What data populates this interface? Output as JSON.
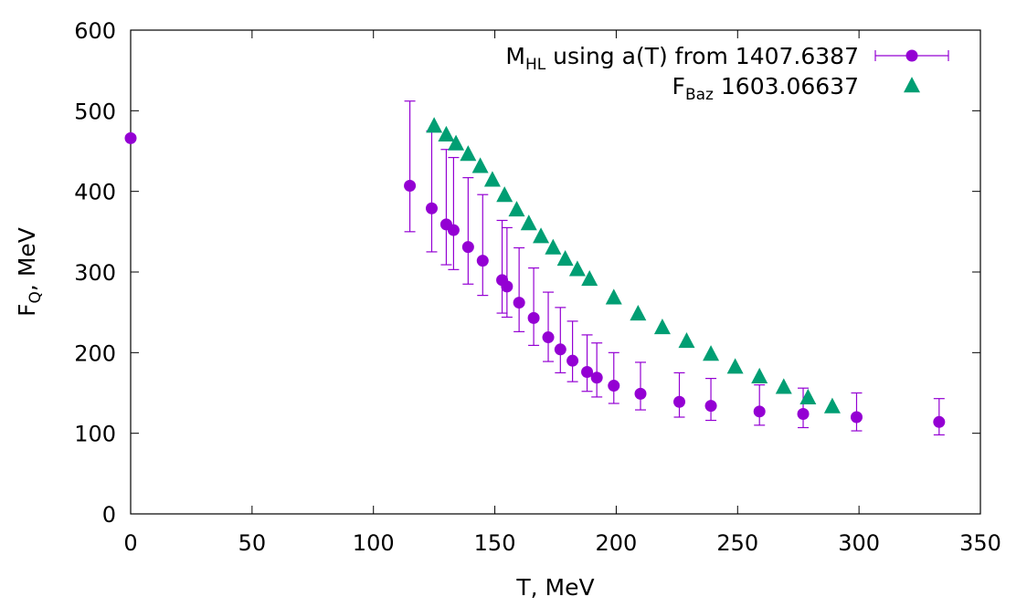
{
  "chart_data": {
    "type": "scatter",
    "title": "",
    "xlabel": "T, MeV",
    "ylabel": {
      "main": "F",
      "sub": "Q",
      "suffix": ", MeV"
    },
    "xlim": [
      0,
      350
    ],
    "ylim": [
      0,
      600
    ],
    "xticks": [
      0,
      50,
      100,
      150,
      200,
      250,
      300,
      350
    ],
    "yticks": [
      0,
      100,
      200,
      300,
      400,
      500,
      600
    ],
    "grid": false,
    "legend_position": "top-right",
    "series": [
      {
        "name": "M_HL using a(T) from 1407.6387",
        "legend": {
          "main": "M",
          "sub": "HL",
          "rest": " using a(T) from 1407.6387"
        },
        "marker": "circle",
        "color": "#9400d3",
        "errorbars": true,
        "points": [
          {
            "x": 0,
            "y": 466,
            "ylo": 466,
            "yhi": 466
          },
          {
            "x": 115,
            "y": 407,
            "ylo": 350,
            "yhi": 512
          },
          {
            "x": 124,
            "y": 379,
            "ylo": 325,
            "yhi": 475
          },
          {
            "x": 130,
            "y": 359,
            "ylo": 309,
            "yhi": 452
          },
          {
            "x": 133,
            "y": 352,
            "ylo": 303,
            "yhi": 442
          },
          {
            "x": 139,
            "y": 331,
            "ylo": 285,
            "yhi": 417
          },
          {
            "x": 145,
            "y": 314,
            "ylo": 271,
            "yhi": 396
          },
          {
            "x": 153,
            "y": 290,
            "ylo": 249,
            "yhi": 364
          },
          {
            "x": 155,
            "y": 282,
            "ylo": 244,
            "yhi": 355
          },
          {
            "x": 160,
            "y": 262,
            "ylo": 226,
            "yhi": 330
          },
          {
            "x": 166,
            "y": 243,
            "ylo": 209,
            "yhi": 305
          },
          {
            "x": 172,
            "y": 219,
            "ylo": 189,
            "yhi": 275
          },
          {
            "x": 177,
            "y": 204,
            "ylo": 175,
            "yhi": 256
          },
          {
            "x": 182,
            "y": 190,
            "ylo": 164,
            "yhi": 239
          },
          {
            "x": 188,
            "y": 176,
            "ylo": 152,
            "yhi": 222
          },
          {
            "x": 192,
            "y": 169,
            "ylo": 145,
            "yhi": 212
          },
          {
            "x": 199,
            "y": 159,
            "ylo": 137,
            "yhi": 200
          },
          {
            "x": 210,
            "y": 149,
            "ylo": 129,
            "yhi": 188
          },
          {
            "x": 226,
            "y": 139,
            "ylo": 120,
            "yhi": 175
          },
          {
            "x": 239,
            "y": 134,
            "ylo": 116,
            "yhi": 168
          },
          {
            "x": 259,
            "y": 127,
            "ylo": 110,
            "yhi": 160
          },
          {
            "x": 277,
            "y": 124,
            "ylo": 107,
            "yhi": 156
          },
          {
            "x": 299,
            "y": 120,
            "ylo": 103,
            "yhi": 150
          },
          {
            "x": 333,
            "y": 114,
            "ylo": 98,
            "yhi": 143
          }
        ]
      },
      {
        "name": "F_Baz 1603.06637",
        "legend": {
          "main": "F",
          "sub": "Baz",
          "rest": " 1603.06637"
        },
        "marker": "triangle",
        "color": "#009e73",
        "errorbars": false,
        "points": [
          {
            "x": 125,
            "y": 481
          },
          {
            "x": 130,
            "y": 470
          },
          {
            "x": 134,
            "y": 459
          },
          {
            "x": 139,
            "y": 446
          },
          {
            "x": 144,
            "y": 431
          },
          {
            "x": 149,
            "y": 414
          },
          {
            "x": 154,
            "y": 395
          },
          {
            "x": 159,
            "y": 377
          },
          {
            "x": 164,
            "y": 360
          },
          {
            "x": 169,
            "y": 344
          },
          {
            "x": 174,
            "y": 330
          },
          {
            "x": 179,
            "y": 316
          },
          {
            "x": 184,
            "y": 303
          },
          {
            "x": 189,
            "y": 291
          },
          {
            "x": 199,
            "y": 268
          },
          {
            "x": 209,
            "y": 248
          },
          {
            "x": 219,
            "y": 231
          },
          {
            "x": 229,
            "y": 214
          },
          {
            "x": 239,
            "y": 198
          },
          {
            "x": 249,
            "y": 182
          },
          {
            "x": 259,
            "y": 170
          },
          {
            "x": 269,
            "y": 157
          },
          {
            "x": 279,
            "y": 144
          },
          {
            "x": 289,
            "y": 133
          }
        ]
      }
    ]
  }
}
